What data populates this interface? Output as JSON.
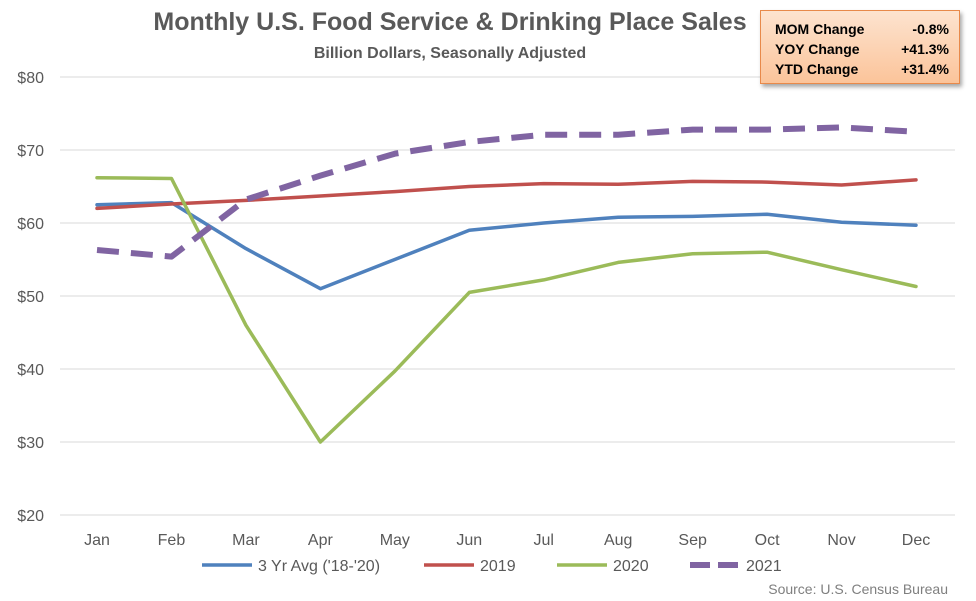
{
  "chart_data": {
    "type": "line",
    "title": "Monthly U.S. Food Service & Drinking Place Sales",
    "subtitle": "Billion Dollars, Seasonally Adjusted",
    "categories": [
      "Jan",
      "Feb",
      "Mar",
      "Apr",
      "May",
      "Jun",
      "Jul",
      "Aug",
      "Sep",
      "Oct",
      "Nov",
      "Dec"
    ],
    "y_ticks": [
      "$20",
      "$30",
      "$40",
      "$50",
      "$60",
      "$70",
      "$80"
    ],
    "ylim": [
      20,
      80
    ],
    "grid": true,
    "legend_position": "bottom",
    "series": [
      {
        "name": "3 Yr Avg ('18-'20)",
        "color": "#4f81bd",
        "dashed": false,
        "values": [
          62.5,
          62.8,
          56.5,
          51.0,
          55.0,
          59.0,
          60.0,
          60.8,
          60.9,
          61.2,
          60.1,
          59.7
        ]
      },
      {
        "name": "2019",
        "color": "#c0504d",
        "dashed": false,
        "values": [
          62.0,
          62.6,
          63.1,
          63.7,
          64.3,
          65.0,
          65.4,
          65.3,
          65.7,
          65.6,
          65.2,
          65.9
        ]
      },
      {
        "name": "2020",
        "color": "#9bbb59",
        "dashed": false,
        "values": [
          66.2,
          66.1,
          46.0,
          30.0,
          39.7,
          50.5,
          52.2,
          54.6,
          55.8,
          56.0,
          53.6,
          51.3
        ]
      },
      {
        "name": "2021",
        "color": "#8064a2",
        "dashed": true,
        "values": [
          56.3,
          55.4,
          63.2,
          66.5,
          69.5,
          71.1,
          72.1,
          72.1,
          72.8,
          72.8,
          73.1,
          72.5
        ]
      }
    ]
  },
  "stats": [
    {
      "label": "MOM Change",
      "value": "-0.8%"
    },
    {
      "label": "YOY Change",
      "value": "+41.3%"
    },
    {
      "label": "YTD Change",
      "value": "+31.4%"
    }
  ],
  "source": "Source: U.S. Census Bureau"
}
